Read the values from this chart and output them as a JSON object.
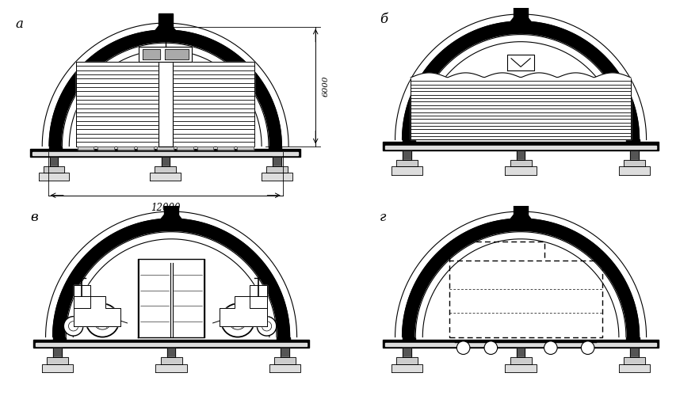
{
  "background": "#ffffff",
  "labels": [
    "а",
    "б",
    "в",
    "г"
  ],
  "dim_6000": "6000",
  "dim_12000": "12000",
  "black": "#000000",
  "gray_light": "#cccccc",
  "gray_med": "#999999"
}
